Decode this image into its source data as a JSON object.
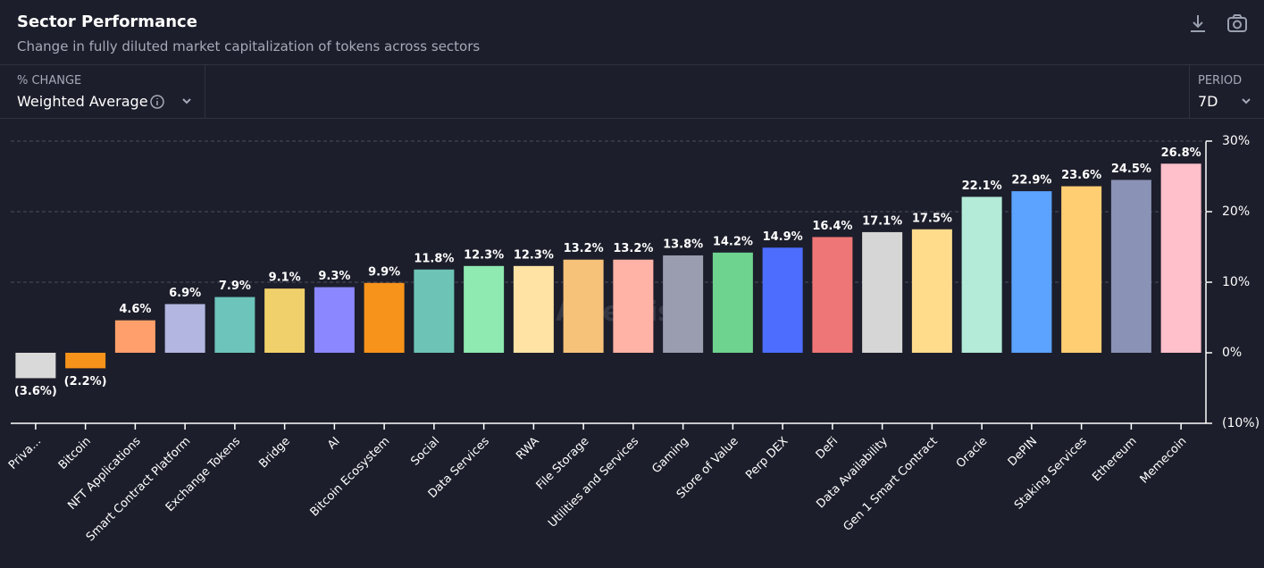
{
  "header": {
    "title": "Sector Performance",
    "subtitle": "Change in fully diluted market capitalization of tokens across sectors"
  },
  "controls": {
    "metric_label": "% CHANGE",
    "metric_value": "Weighted Average",
    "period_label": "PERIOD",
    "period_value": "7D"
  },
  "watermark": "Artemis",
  "chart_data": {
    "type": "bar",
    "categories": [
      "Priva...",
      "Bitcoin",
      "NFT Applications",
      "Smart Contract Platform",
      "Exchange Tokens",
      "Bridge",
      "AI",
      "Bitcoin Ecosystem",
      "Social",
      "Data Services",
      "RWA",
      "File Storage",
      "Utilities and Services",
      "Gaming",
      "Store of Value",
      "Perp DEX",
      "DeFi",
      "Data Availability",
      "Gen 1 Smart Contract",
      "Oracle",
      "DePIN",
      "Staking Services",
      "Ethereum",
      "Memecoin"
    ],
    "values": [
      -3.6,
      -2.2,
      4.6,
      6.9,
      7.9,
      9.1,
      9.3,
      9.9,
      11.8,
      12.3,
      12.3,
      13.2,
      13.2,
      13.8,
      14.2,
      14.9,
      16.4,
      17.1,
      17.5,
      22.1,
      22.9,
      23.6,
      24.5,
      26.8
    ],
    "value_labels": [
      "(3.6%)",
      "(2.2%)",
      "4.6%",
      "6.9%",
      "7.9%",
      "9.1%",
      "9.3%",
      "9.9%",
      "11.8%",
      "12.3%",
      "12.3%",
      "13.2%",
      "13.2%",
      "13.8%",
      "14.2%",
      "14.9%",
      "16.4%",
      "17.1%",
      "17.5%",
      "22.1%",
      "22.9%",
      "23.6%",
      "24.5%",
      "26.8%"
    ],
    "colors": [
      "#d9d9d9",
      "#f7931a",
      "#ff9f6b",
      "#b3b6e0",
      "#6cc4bb",
      "#f0d06b",
      "#8b87fe",
      "#f7931a",
      "#6dc4b6",
      "#8eeab0",
      "#ffe3a4",
      "#f6c27a",
      "#ffb3a7",
      "#9a9cb0",
      "#6ed38f",
      "#4d6dff",
      "#ef7676",
      "#d6d6d6",
      "#ffdc8c",
      "#b3ead8",
      "#5ba3ff",
      "#ffcd72",
      "#8a93b5",
      "#ffc0cb"
    ],
    "ylim": [
      -10,
      30
    ],
    "yticks": [
      {
        "value": -10,
        "label": "(10%)"
      },
      {
        "value": 0,
        "label": "0%"
      },
      {
        "value": 10,
        "label": "10%"
      },
      {
        "value": 20,
        "label": "20%"
      },
      {
        "value": 30,
        "label": "30%"
      }
    ],
    "grid": true
  }
}
